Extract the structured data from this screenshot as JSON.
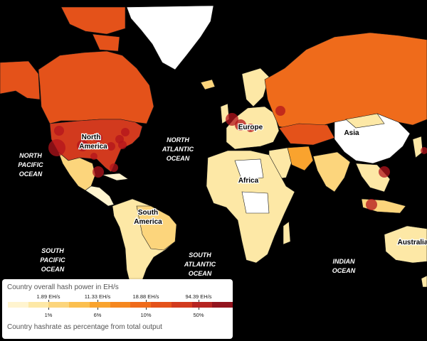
{
  "colors": {
    "background": "#000000",
    "scale": [
      "#fff4cf",
      "#fde8a6",
      "#fcd57c",
      "#fbbf4f",
      "#f9a32e",
      "#f5871f",
      "#ef6b1b",
      "#e4521a",
      "#d23a1e",
      "#b62421",
      "#93141e"
    ],
    "no_data": "#ffffff",
    "miner_marker": "#b3141c"
  },
  "map": {
    "ocean_labels": [
      {
        "line1": "NORTH",
        "line2": "PACIFIC",
        "line3": "OCEAN"
      },
      {
        "line1": "NORTH",
        "line2": "ATLANTIC",
        "line3": "OCEAN"
      },
      {
        "line1": "SOUTH",
        "line2": "PACIFIC",
        "line3": "OCEAN"
      },
      {
        "line1": "SOUTH",
        "line2": "ATLANTIC",
        "line3": "OCEAN"
      },
      {
        "line1": "INDIAN",
        "line2": "OCEAN",
        "line3": ""
      }
    ],
    "continent_labels": [
      {
        "line1": "North",
        "line2": "America"
      },
      {
        "line1": "South",
        "line2": "America"
      },
      {
        "line1": "Europe",
        "line2": ""
      },
      {
        "line1": "Asia",
        "line2": ""
      },
      {
        "line1": "Africa",
        "line2": ""
      },
      {
        "line1": "Australia",
        "line2": ""
      }
    ]
  },
  "legend": {
    "title": "Country overall hash power in EH/s",
    "footnote": "Country hashrate as percentage from total output",
    "hash_ticks": [
      "1.89 EH/s",
      "11.33 EH/s",
      "18.88 EH/s",
      "94.39 EH/s"
    ],
    "percent_ticks": [
      "1%",
      "6%",
      "10%",
      "50%"
    ]
  }
}
